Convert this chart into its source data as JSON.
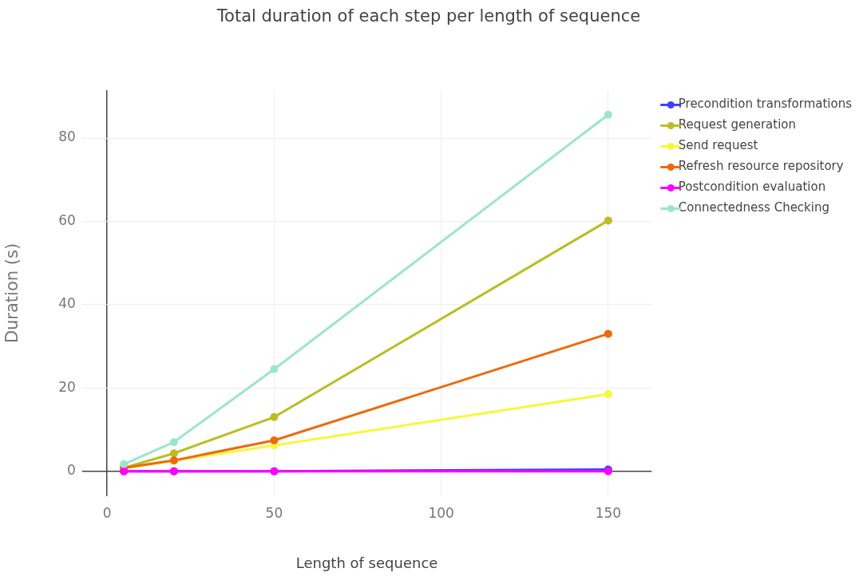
{
  "chart_data": {
    "type": "line",
    "title": "Total duration of each step per length of sequence",
    "xlabel": "Length of sequence",
    "ylabel": "Duration (s)",
    "x": [
      5,
      20,
      50,
      150
    ],
    "series": [
      {
        "name": "Precondition transformations",
        "color": "#3f3fff",
        "values": [
          0,
          0,
          0,
          0.4
        ]
      },
      {
        "name": "Request generation",
        "color": "#bcbd22",
        "values": [
          0.8,
          4.3,
          13,
          60.2
        ]
      },
      {
        "name": "Send request",
        "color": "#f7f73b",
        "values": [
          0.7,
          2.5,
          6.2,
          18.5
        ]
      },
      {
        "name": "Refresh resource repository",
        "color": "#ec6a0c",
        "values": [
          0.8,
          2.6,
          7.4,
          33
        ]
      },
      {
        "name": "Postcondition evaluation",
        "color": "#ff00ff",
        "values": [
          0,
          0,
          0,
          0
        ]
      },
      {
        "name": "Connectedness Checking",
        "color": "#9de4cf",
        "values": [
          1.7,
          7,
          24.5,
          85.6
        ]
      }
    ],
    "xlim": [
      -7.5,
      163
    ],
    "xticks": [
      0,
      50,
      100,
      150
    ],
    "ylim": [
      -6,
      91.5
    ],
    "yticks": [
      0,
      20,
      40,
      60,
      80
    ],
    "grid": true,
    "legend": "top right",
    "marker": "circle",
    "line_style": "solid"
  }
}
